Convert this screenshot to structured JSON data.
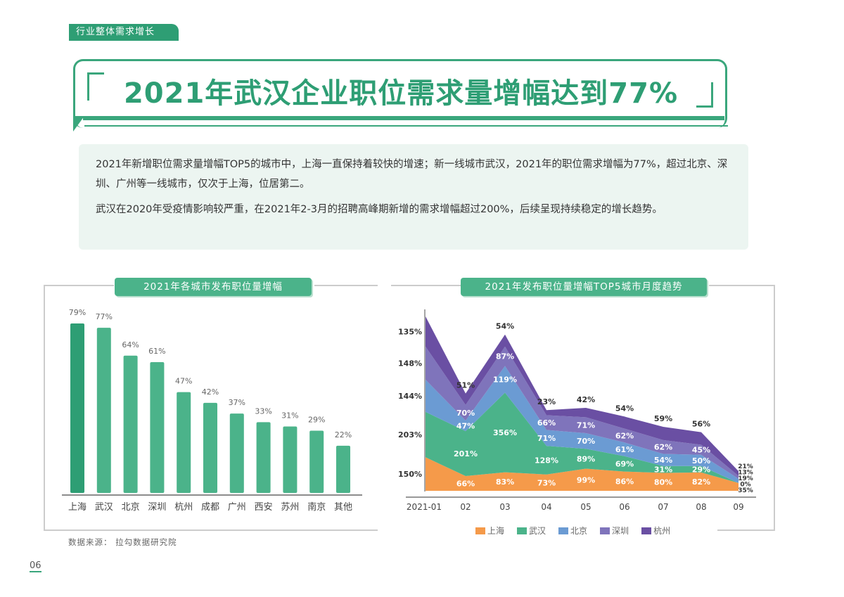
{
  "section_tag": "行业整体需求增长",
  "title": "2021年武汉企业职位需求量增幅达到77%",
  "summary": [
    "2021年新增职位需求量增幅TOP5的城市中，上海一直保持着较快的增速；新一线城市武汉，2021年的职位需求增幅为77%，超过北京、深圳、广州等一线城市，仅次于上海，位居第二。",
    "武汉在2020年受疫情影响较严重，在2021年2-3月的招聘高峰期新增的需求增幅超过200%，后续呈现持续稳定的增长趋势。"
  ],
  "source": "数据来源： 拉勾数据研究院",
  "page_number": "06",
  "chart_data": [
    {
      "type": "bar",
      "title": "2021年各城市发布职位量增幅",
      "categories": [
        "上海",
        "武汉",
        "北京",
        "深圳",
        "杭州",
        "成都",
        "广州",
        "西安",
        "苏州",
        "南京",
        "其他"
      ],
      "values": [
        79,
        77,
        64,
        61,
        47,
        42,
        37,
        33,
        31,
        29,
        22
      ],
      "labels": [
        "79%",
        "77%",
        "64%",
        "61%",
        "47%",
        "42%",
        "37%",
        "33%",
        "31%",
        "29%",
        "22%"
      ],
      "colors": {
        "highlight": "#2e9e74",
        "bar": "#4bb38a"
      },
      "grid": false
    },
    {
      "type": "area",
      "stacked": true,
      "title": "2021年发布职位量增幅TOP5城市月度趋势",
      "categories": [
        "2021-01",
        "02",
        "03",
        "04",
        "05",
        "06",
        "07",
        "08",
        "09"
      ],
      "series": [
        {
          "name": "上海",
          "color": "#f59a4a",
          "values": [
            150,
            66,
            83,
            73,
            99,
            86,
            80,
            82,
            35
          ]
        },
        {
          "name": "武汉",
          "color": "#4bb38a",
          "values": [
            203,
            201,
            356,
            128,
            89,
            69,
            31,
            29,
            0
          ]
        },
        {
          "name": "北京",
          "color": "#6b9bd3",
          "values": [
            144,
            47,
            119,
            71,
            70,
            61,
            54,
            50,
            19
          ]
        },
        {
          "name": "深圳",
          "color": "#7f74bb",
          "values": [
            148,
            70,
            87,
            66,
            71,
            62,
            62,
            45,
            13
          ]
        },
        {
          "name": "杭州",
          "color": "#6a4fa3",
          "values": [
            135,
            51,
            54,
            23,
            42,
            54,
            59,
            56,
            21
          ]
        }
      ],
      "legend": "bottom",
      "grid": false
    }
  ]
}
